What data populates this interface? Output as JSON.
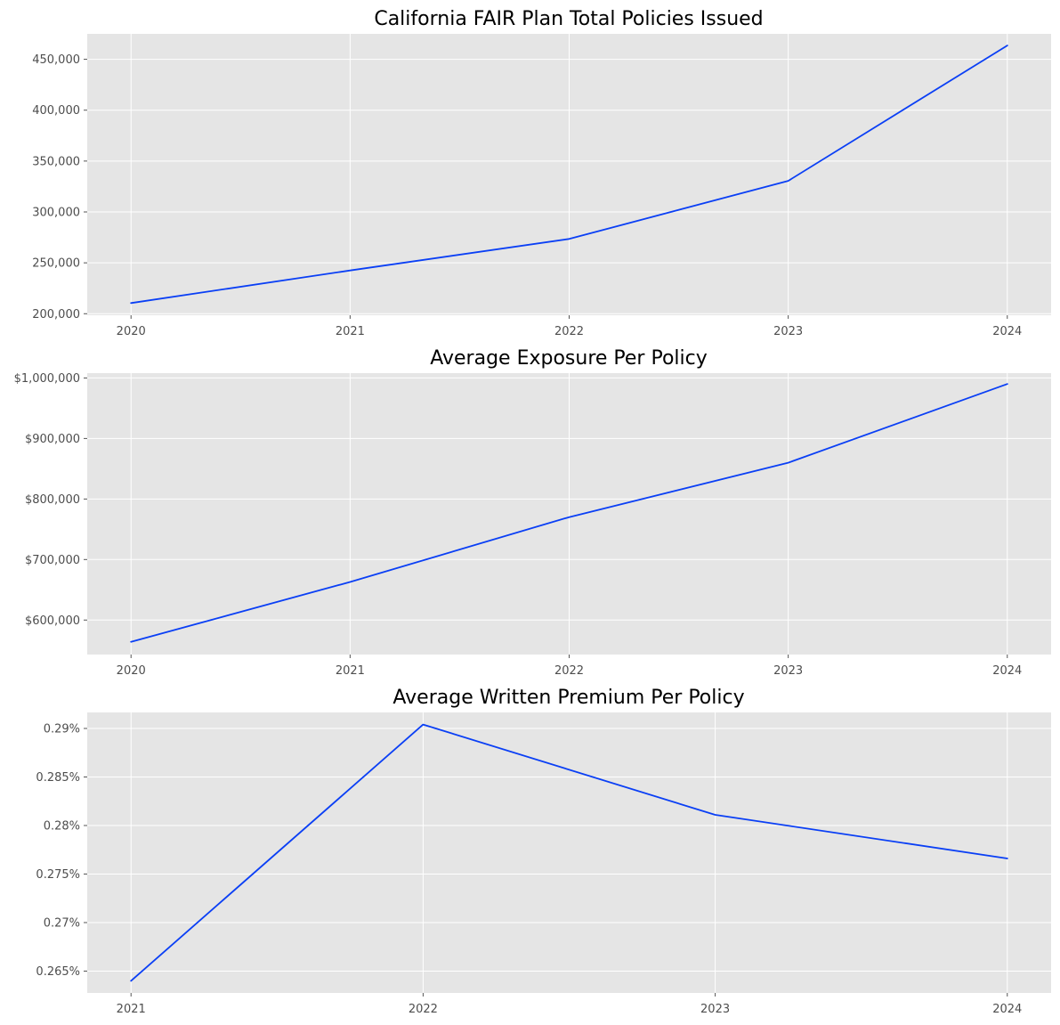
{
  "colors": {
    "series": "#0a3ff5",
    "plot_background": "#e5e5e5",
    "grid": "#ffffff"
  },
  "chart_data": [
    {
      "type": "line",
      "title": "California FAIR Plan Total Policies Issued",
      "xlabel": "",
      "ylabel": "",
      "grid": true,
      "x": [
        2020,
        2021,
        2022,
        2023,
        2024
      ],
      "x_tick_labels": [
        "2020",
        "2021",
        "2022",
        "2023",
        "2024"
      ],
      "xlim": [
        2019.8,
        2024.2
      ],
      "series": [
        {
          "values": [
            210500,
            242500,
            273500,
            330500,
            463500
          ]
        }
      ],
      "ylim": [
        198500,
        475000
      ],
      "y_ticks": [
        200000,
        250000,
        300000,
        350000,
        400000,
        450000
      ],
      "y_tick_labels": [
        "200,000",
        "250,000",
        "300,000",
        "350,000",
        "400,000",
        "450,000"
      ]
    },
    {
      "type": "line",
      "title": "Average Exposure Per Policy",
      "xlabel": "",
      "ylabel": "",
      "grid": true,
      "x": [
        2020,
        2021,
        2022,
        2023,
        2024
      ],
      "x_tick_labels": [
        "2020",
        "2021",
        "2022",
        "2023",
        "2024"
      ],
      "xlim": [
        2019.8,
        2024.2
      ],
      "series": [
        {
          "values": [
            564000,
            663000,
            770000,
            860000,
            990000
          ]
        }
      ],
      "ylim": [
        543000,
        1008000
      ],
      "y_ticks": [
        600000,
        700000,
        800000,
        900000,
        1000000
      ],
      "y_tick_labels": [
        "$600,000",
        "$700,000",
        "$800,000",
        "$900,000",
        "$1,000,000"
      ]
    },
    {
      "type": "line",
      "title": "Average Written Premium Per Policy",
      "xlabel": "",
      "ylabel": "",
      "grid": true,
      "x": [
        2021,
        2022,
        2023,
        2024
      ],
      "x_tick_labels": [
        "2021",
        "2022",
        "2023",
        "2024"
      ],
      "xlim": [
        2020.85,
        2024.15
      ],
      "series": [
        {
          "values": [
            0.264,
            0.2904,
            0.2811,
            0.2766
          ]
        }
      ],
      "ylim": [
        0.26275,
        0.29165
      ],
      "y_ticks": [
        0.265,
        0.27,
        0.275,
        0.28,
        0.285,
        0.29
      ],
      "y_tick_labels": [
        "0.265%",
        "0.27%",
        "0.275%",
        "0.28%",
        "0.285%",
        "0.29%"
      ]
    }
  ]
}
